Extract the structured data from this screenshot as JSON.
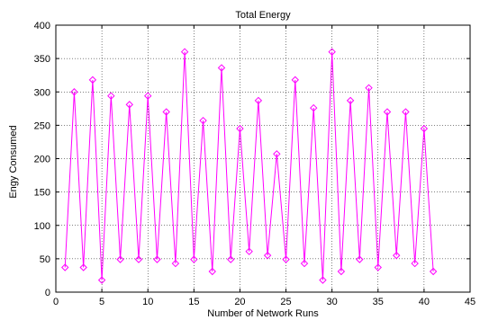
{
  "chart_data": {
    "type": "line",
    "title": "Total Energy",
    "xlabel": "Number of Network Runs",
    "ylabel": "Engy Consumed",
    "xlim": [
      0,
      45
    ],
    "ylim": [
      0,
      400
    ],
    "xticks": [
      0,
      5,
      10,
      15,
      20,
      25,
      30,
      35,
      40,
      45
    ],
    "yticks": [
      0,
      50,
      100,
      150,
      200,
      250,
      300,
      350,
      400
    ],
    "grid": true,
    "marker": "diamond",
    "color": "#ff00ff",
    "x": [
      1,
      2,
      3,
      4,
      5,
      6,
      7,
      8,
      9,
      10,
      11,
      12,
      13,
      14,
      15,
      16,
      17,
      18,
      19,
      20,
      21,
      22,
      23,
      24,
      25,
      26,
      27,
      28,
      29,
      30,
      31,
      32,
      33,
      34,
      35,
      36,
      37,
      38,
      39,
      40,
      41
    ],
    "y": [
      37,
      300,
      37,
      318,
      18,
      294,
      49,
      281,
      49,
      294,
      49,
      270,
      43,
      360,
      49,
      257,
      31,
      336,
      49,
      245,
      61,
      287,
      55,
      207,
      49,
      318,
      43,
      276,
      18,
      360,
      31,
      287,
      49,
      306,
      37,
      270,
      55,
      270,
      43,
      245,
      31
    ]
  }
}
